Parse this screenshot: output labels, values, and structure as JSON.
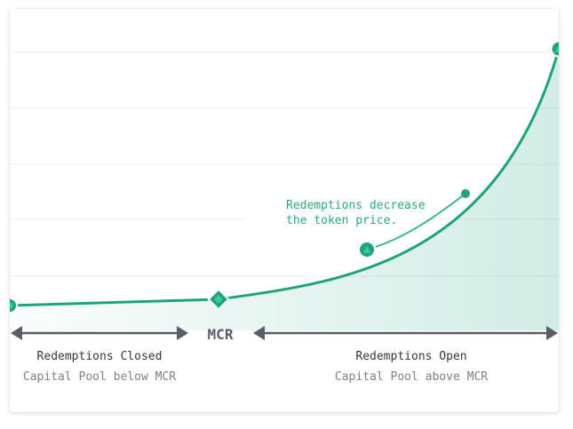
{
  "colors": {
    "curve": "#1fa37e",
    "annotation": "#2aa882",
    "arrow": "#585e67",
    "label_dark": "#33373d",
    "label_light": "#808080",
    "grid": "#e6e9ec"
  },
  "annotation": {
    "line1": "Redemptions decrease",
    "line2": "the token price."
  },
  "mcr_label": "MCR",
  "left_region": {
    "title": "Redemptions Closed",
    "subtitle": "Capital Pool below MCR"
  },
  "right_region": {
    "title": "Redemptions Open",
    "subtitle": "Capital Pool above MCR"
  },
  "markers": {
    "start": "circle",
    "mcr": "diamond",
    "annotation_end": "triangle-up",
    "curve_end": "triangle-up"
  }
}
